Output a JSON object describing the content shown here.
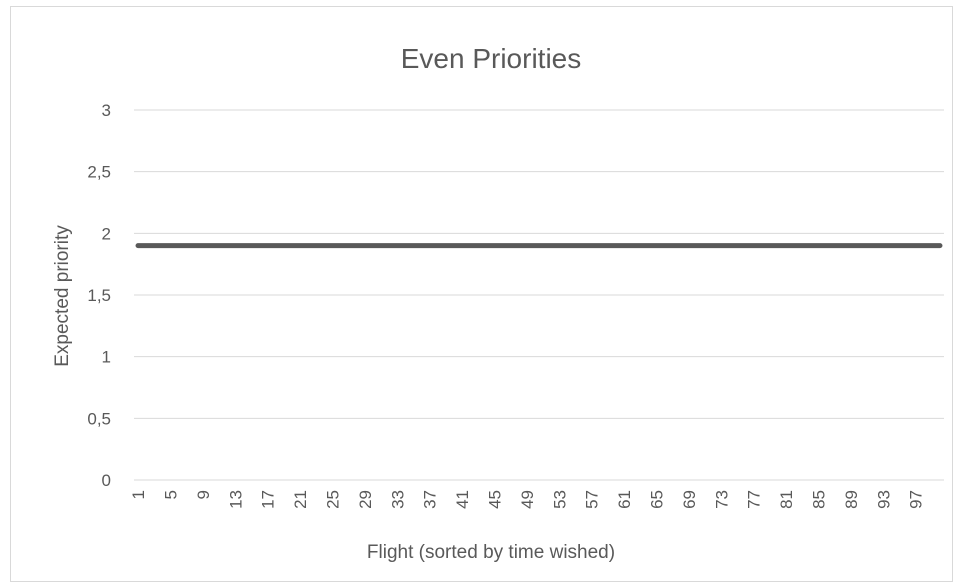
{
  "chart_data": {
    "type": "line",
    "title": "Even Priorities",
    "xlabel": "Flight (sorted by time wished)",
    "ylabel": "Expected priority",
    "x": {
      "start": 1,
      "end": 100,
      "tick_labels": [
        "1",
        "5",
        "9",
        "13",
        "17",
        "21",
        "25",
        "29",
        "33",
        "37",
        "41",
        "45",
        "49",
        "53",
        "57",
        "61",
        "65",
        "69",
        "73",
        "77",
        "81",
        "85",
        "89",
        "93",
        "97"
      ]
    },
    "ylim": [
      0,
      3
    ],
    "y_tick_labels": [
      "0",
      "0,5",
      "1",
      "1,5",
      "2",
      "2,5",
      "3"
    ],
    "grid": true,
    "legend": "none",
    "series": [
      {
        "x_range": [
          1,
          100
        ],
        "value": 1.9,
        "color": "#595959"
      }
    ]
  },
  "colors": {
    "grid": "#d9d9d9",
    "text": "#595959",
    "line": "#595959"
  }
}
